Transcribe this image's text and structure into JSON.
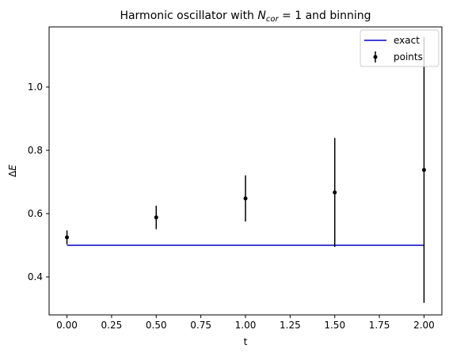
{
  "chart_data": {
    "type": "scatter",
    "title_prefix": "Harmonic oscillator with ",
    "title_var": "N",
    "title_sub": "cor",
    "title_suffix": " = 1 and binning",
    "xlabel": "t",
    "ylabel_delta": "Δ",
    "ylabel_var": "E",
    "xlim": [
      -0.1,
      2.1
    ],
    "ylim": [
      0.28,
      1.19
    ],
    "xticks": [
      0.0,
      0.25,
      0.5,
      0.75,
      1.0,
      1.25,
      1.5,
      1.75,
      2.0
    ],
    "xtick_labels": [
      "0.00",
      "0.25",
      "0.50",
      "0.75",
      "1.00",
      "1.25",
      "1.50",
      "1.75",
      "2.00"
    ],
    "yticks": [
      0.4,
      0.6,
      0.8,
      1.0
    ],
    "ytick_labels": [
      "0.4",
      "0.6",
      "0.8",
      "1.0"
    ],
    "grid": false,
    "legend_position": "top-right",
    "series": [
      {
        "name": "exact",
        "kind": "line",
        "color": "#0000cc",
        "x": [
          0.0,
          2.0
        ],
        "y": [
          0.5,
          0.5
        ]
      },
      {
        "name": "points",
        "kind": "errorbar",
        "color": "#000000",
        "x": [
          0.0,
          0.5,
          1.0,
          1.5,
          2.0
        ],
        "y": [
          0.525,
          0.588,
          0.648,
          0.667,
          0.738
        ],
        "yerr": [
          0.022,
          0.037,
          0.073,
          0.172,
          0.42
        ]
      }
    ]
  }
}
